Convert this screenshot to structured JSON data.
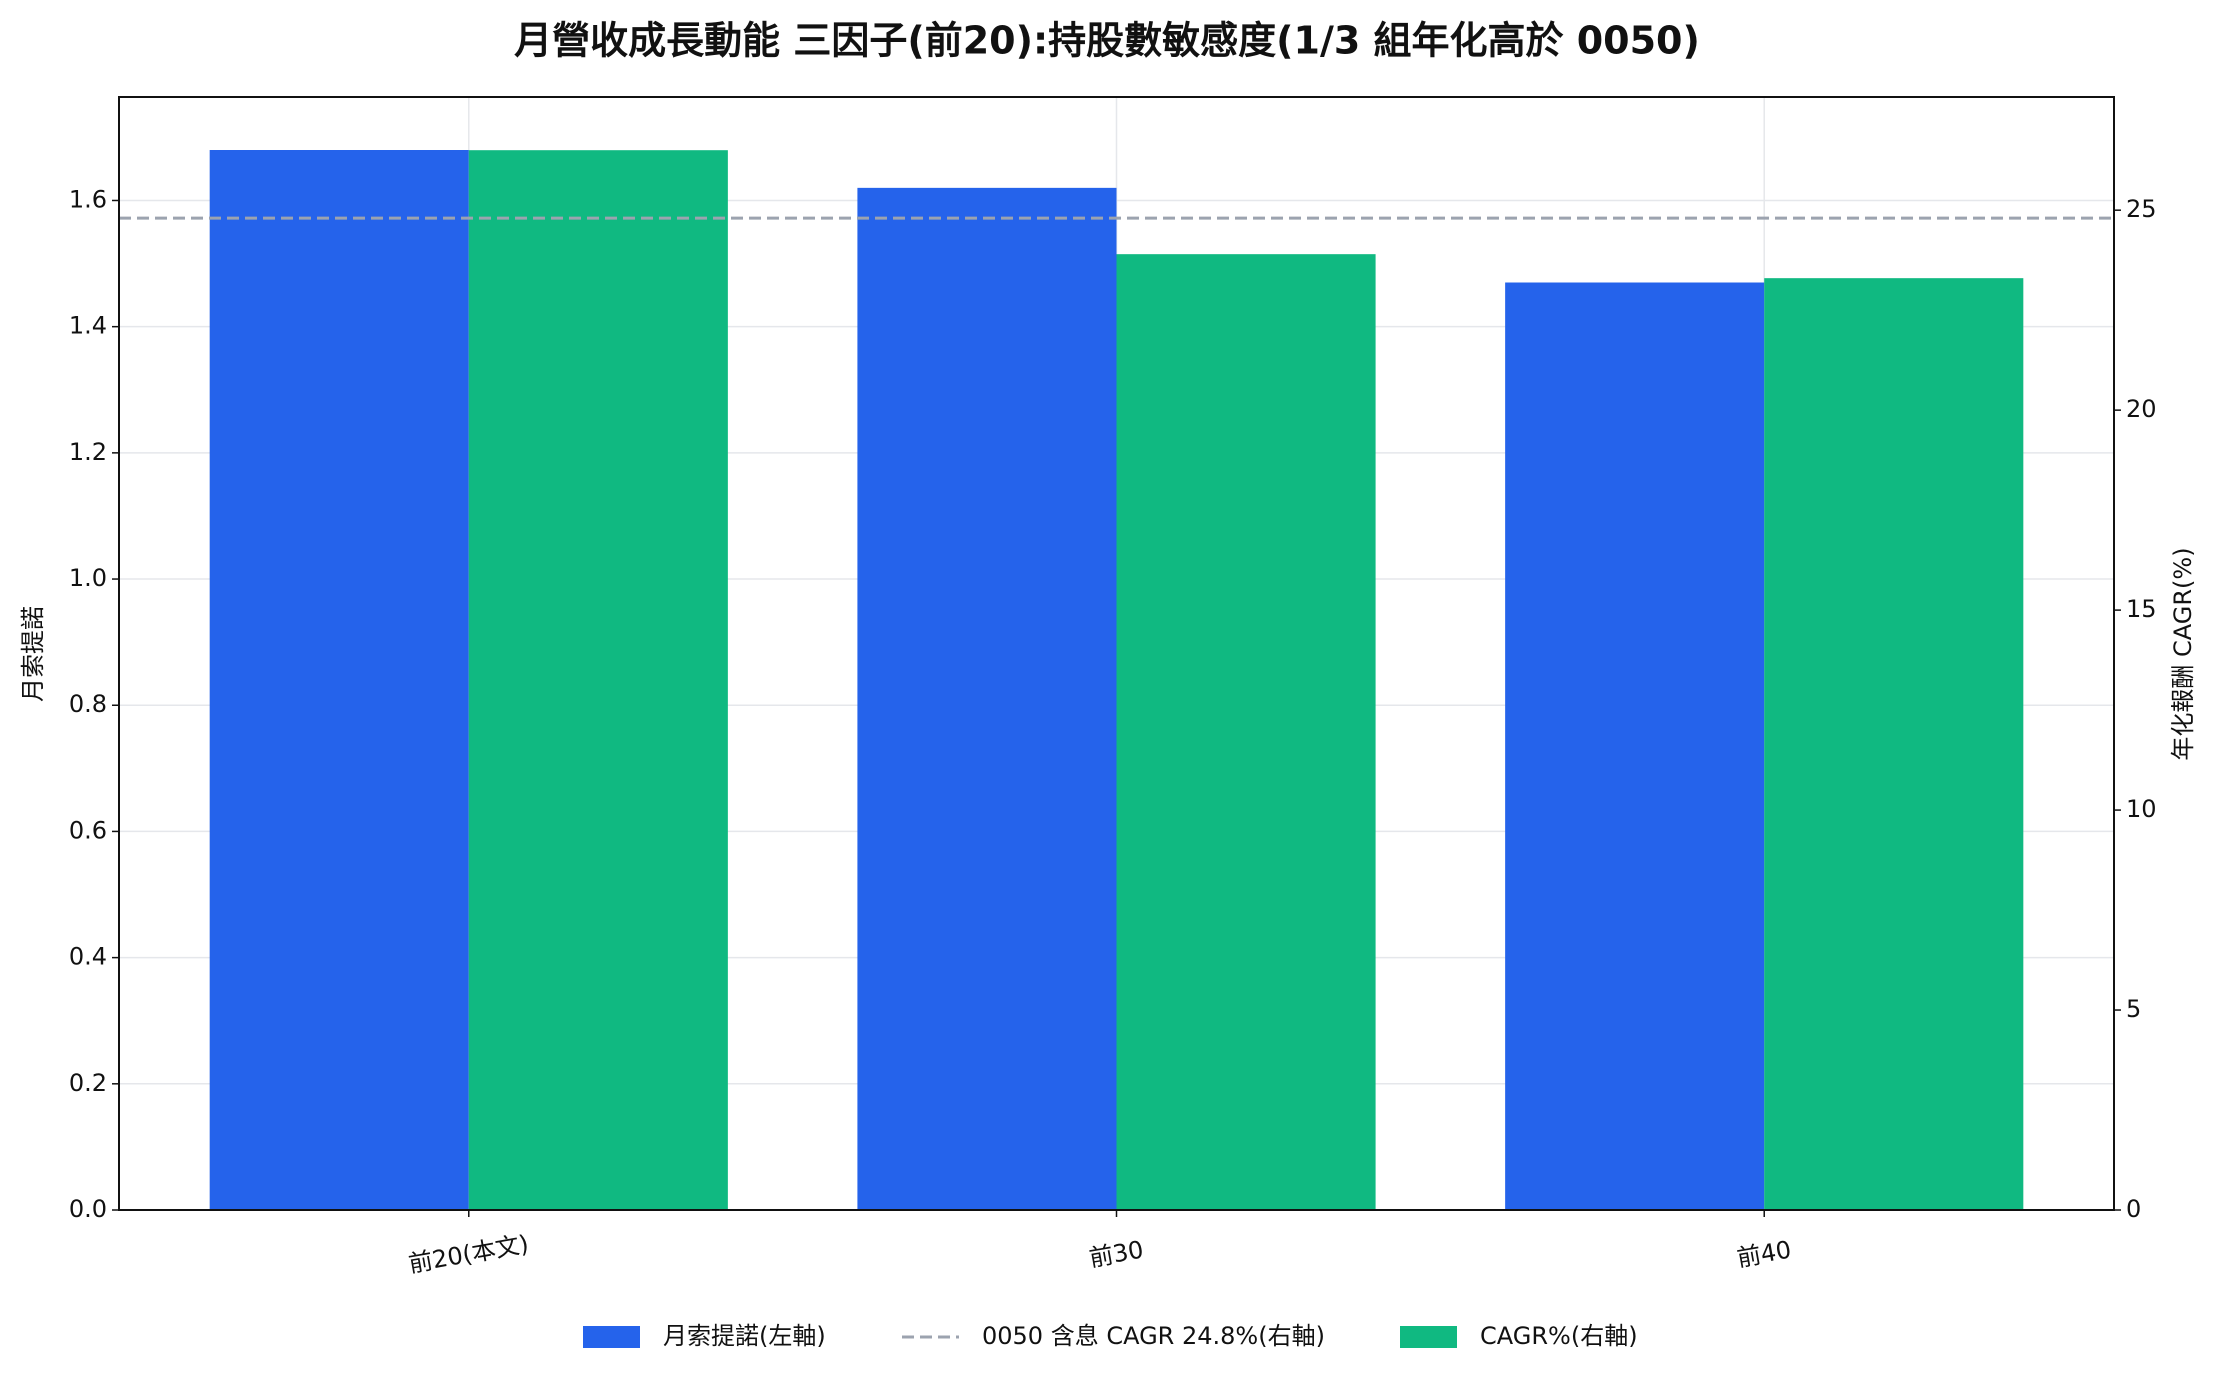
{
  "chart_data": {
    "type": "bar",
    "title": "月營收成長動能 三因子(前20):持股數敏感度(1/3 組年化高於 0050)",
    "categories": [
      "前20(本文)",
      "前30",
      "前40"
    ],
    "series": [
      {
        "name": "月索提諾(左軸)",
        "color": "#2563eb",
        "values": [
          1.68,
          1.62,
          1.47
        ]
      },
      {
        "name": "CAGR%(右軸)",
        "color": "#10b981",
        "values": [
          26.5,
          23.9,
          23.3
        ],
        "axis": "y2"
      }
    ],
    "reference_lines": [
      {
        "name": "0050 含息 CAGR 24.8%(右軸)",
        "value": 24.8,
        "axis": "y2",
        "color": "#9ca3af"
      }
    ],
    "y_label": "月索提諾",
    "y2_label": "年化報酬 CAGR(%)",
    "ylim": [
      0,
      1.764
    ],
    "yticks": [
      {
        "value": 0,
        "label": "0.0"
      },
      0.2,
      0.4,
      0.6,
      0.8,
      {
        "value": 1,
        "label": "1.0"
      },
      1.2,
      1.4,
      1.6
    ],
    "y2lim": [
      0,
      27.83
    ],
    "y2ticks": [
      0,
      5,
      10,
      15,
      20,
      25
    ],
    "grid": true,
    "legend": "bottom"
  }
}
